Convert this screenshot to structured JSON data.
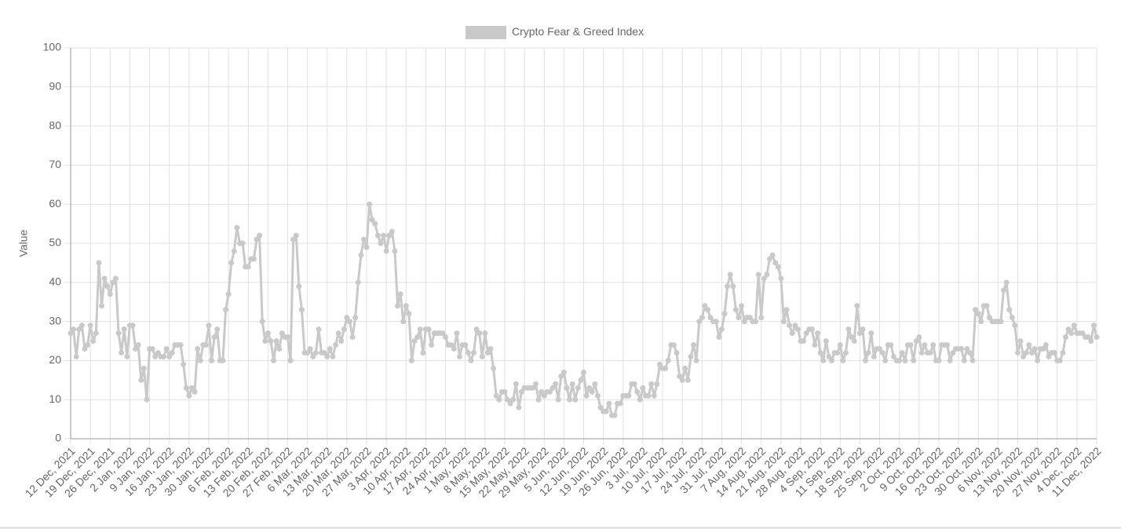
{
  "chart_data": {
    "type": "line",
    "y_label": "Value",
    "legend": "top",
    "grid": true,
    "ylim": [
      0,
      100
    ],
    "yticks": [
      0,
      10,
      20,
      30,
      40,
      50,
      60,
      70,
      80,
      90,
      100
    ],
    "categories": [
      "12 Dec, 2021",
      null,
      null,
      null,
      null,
      null,
      null,
      "19 Dec, 2021",
      null,
      null,
      null,
      null,
      null,
      null,
      "26 Dec, 2021",
      null,
      null,
      null,
      null,
      null,
      null,
      "2 Jan, 2022",
      null,
      null,
      null,
      null,
      null,
      null,
      "9 Jan, 2022",
      null,
      null,
      null,
      null,
      null,
      null,
      "16 Jan, 2022",
      null,
      null,
      null,
      null,
      null,
      null,
      "23 Jan, 2022",
      null,
      null,
      null,
      null,
      null,
      null,
      "30 Jan, 2022",
      null,
      null,
      null,
      null,
      null,
      null,
      "6 Feb, 2022",
      null,
      null,
      null,
      null,
      null,
      null,
      "13 Feb, 2022",
      null,
      null,
      null,
      null,
      null,
      null,
      "20 Feb, 2022",
      null,
      null,
      null,
      null,
      null,
      null,
      "27 Feb, 2022",
      null,
      null,
      null,
      null,
      null,
      null,
      "6 Mar, 2022",
      null,
      null,
      null,
      null,
      null,
      null,
      "13 Mar, 2022",
      null,
      null,
      null,
      null,
      null,
      null,
      "20 Mar, 2022",
      null,
      null,
      null,
      null,
      null,
      null,
      "27 Mar, 2022",
      null,
      null,
      null,
      null,
      null,
      null,
      "3 Apr, 2022",
      null,
      null,
      null,
      null,
      null,
      null,
      "10 Apr, 2022",
      null,
      null,
      null,
      null,
      null,
      null,
      "17 Apr, 2022",
      null,
      null,
      null,
      null,
      null,
      null,
      "24 Apr, 2022",
      null,
      null,
      null,
      null,
      null,
      null,
      "1 May, 2022",
      null,
      null,
      null,
      null,
      null,
      null,
      "8 May, 2022",
      null,
      null,
      null,
      null,
      null,
      null,
      "15 May, 2022",
      null,
      null,
      null,
      null,
      null,
      null,
      "22 May, 2022",
      null,
      null,
      null,
      null,
      null,
      null,
      "29 May, 2022",
      null,
      null,
      null,
      null,
      null,
      null,
      "5 Jun, 2022",
      null,
      null,
      null,
      null,
      null,
      null,
      "12 Jun, 2022",
      null,
      null,
      null,
      null,
      null,
      null,
      "19 Jun, 2022",
      null,
      null,
      null,
      null,
      null,
      null,
      "26 Jun, 2022",
      null,
      null,
      null,
      null,
      null,
      null,
      "3 Jul, 2022",
      null,
      null,
      null,
      null,
      null,
      null,
      "10 Jul, 2022",
      null,
      null,
      null,
      null,
      null,
      null,
      "17 Jul, 2022",
      null,
      null,
      null,
      null,
      null,
      null,
      "24 Jul, 2022",
      null,
      null,
      null,
      null,
      null,
      null,
      "31 Jul, 2022",
      null,
      null,
      null,
      null,
      null,
      null,
      "7 Aug, 2022",
      null,
      null,
      null,
      null,
      null,
      null,
      "14 Aug, 2022",
      null,
      null,
      null,
      null,
      null,
      null,
      "21 Aug, 2022",
      null,
      null,
      null,
      null,
      null,
      null,
      "28 Aug, 2022",
      null,
      null,
      null,
      null,
      null,
      null,
      "4 Sep, 2022",
      null,
      null,
      null,
      null,
      null,
      null,
      "11 Sep, 2022",
      null,
      null,
      null,
      null,
      null,
      null,
      "18 Sep, 2022",
      null,
      null,
      null,
      null,
      null,
      null,
      "25 Sep, 2022",
      null,
      null,
      null,
      null,
      null,
      null,
      "2 Oct, 2022",
      null,
      null,
      null,
      null,
      null,
      null,
      "9 Oct, 2022",
      null,
      null,
      null,
      null,
      null,
      null,
      "16 Oct, 2022",
      null,
      null,
      null,
      null,
      null,
      null,
      "23 Oct, 2022",
      null,
      null,
      null,
      null,
      null,
      null,
      "30 Oct, 2022",
      null,
      null,
      null,
      null,
      null,
      null,
      "6 Nov, 2022",
      null,
      null,
      null,
      null,
      null,
      null,
      "13 Nov, 2022",
      null,
      null,
      null,
      null,
      null,
      null,
      "20 Nov, 2022",
      null,
      null,
      null,
      null,
      null,
      null,
      "27 Nov, 2022",
      null,
      null,
      null,
      null,
      null,
      null,
      "4 Dec, 2022",
      null,
      null,
      null,
      null,
      null,
      null,
      "11 Dec, 2022"
    ],
    "series": [
      {
        "name": "Crypto Fear & Greed Index",
        "color": "#c9c9c9",
        "values": [
          27,
          28,
          21,
          28,
          29,
          23,
          24,
          29,
          25,
          27,
          45,
          34,
          41,
          39,
          37,
          40,
          41,
          27,
          22,
          28,
          21,
          29,
          29,
          23,
          24,
          15,
          18,
          10,
          23,
          23,
          21,
          22,
          21,
          21,
          23,
          21,
          22,
          24,
          24,
          24,
          19,
          13,
          11,
          13,
          12,
          23,
          20,
          24,
          24,
          29,
          20,
          26,
          28,
          20,
          20,
          33,
          37,
          45,
          48,
          54,
          50,
          50,
          44,
          44,
          46,
          46,
          51,
          52,
          30,
          25,
          27,
          25,
          20,
          25,
          23,
          27,
          26,
          26,
          20,
          51,
          52,
          39,
          33,
          22,
          22,
          23,
          21,
          22,
          28,
          22,
          22,
          21,
          23,
          21,
          24,
          27,
          25,
          28,
          31,
          30,
          26,
          31,
          40,
          47,
          51,
          49,
          60,
          56,
          55,
          52,
          50,
          52,
          48,
          52,
          53,
          48,
          34,
          37,
          30,
          34,
          32,
          20,
          25,
          26,
          28,
          22,
          28,
          28,
          24,
          27,
          27,
          27,
          27,
          26,
          24,
          24,
          23,
          27,
          21,
          24,
          24,
          22,
          20,
          22,
          28,
          27,
          21,
          27,
          22,
          23,
          18,
          11,
          10,
          12,
          12,
          10,
          9,
          10,
          14,
          8,
          12,
          13,
          13,
          13,
          13,
          14,
          10,
          12,
          11,
          12,
          12,
          13,
          14,
          10,
          16,
          17,
          13,
          10,
          14,
          10,
          13,
          15,
          17,
          11,
          13,
          12,
          14,
          11,
          8,
          7,
          7,
          9,
          6,
          6,
          9,
          9,
          11,
          11,
          11,
          14,
          14,
          12,
          10,
          13,
          11,
          11,
          14,
          11,
          14,
          19,
          18,
          18,
          20,
          24,
          24,
          22,
          16,
          15,
          18,
          15,
          21,
          24,
          20,
          30,
          31,
          34,
          33,
          31,
          30,
          30,
          26,
          28,
          32,
          39,
          42,
          39,
          33,
          31,
          34,
          30,
          31,
          31,
          30,
          30,
          42,
          31,
          41,
          42,
          46,
          47,
          45,
          44,
          41,
          30,
          33,
          29,
          27,
          29,
          28,
          25,
          25,
          27,
          28,
          28,
          24,
          27,
          22,
          20,
          25,
          21,
          20,
          22,
          22,
          24,
          20,
          22,
          28,
          26,
          25,
          34,
          27,
          28,
          20,
          22,
          27,
          21,
          23,
          23,
          22,
          20,
          24,
          24,
          21,
          20,
          20,
          22,
          20,
          24,
          24,
          20,
          25,
          26,
          22,
          24,
          22,
          22,
          24,
          20,
          20,
          24,
          24,
          24,
          20,
          22,
          23,
          23,
          23,
          20,
          23,
          22,
          20,
          33,
          32,
          30,
          34,
          34,
          31,
          30,
          30,
          30,
          30,
          38,
          40,
          33,
          31,
          29,
          22,
          25,
          21,
          22,
          24,
          22,
          23,
          20,
          23,
          23,
          24,
          21,
          22,
          22,
          20,
          20,
          22,
          26,
          28,
          27,
          29,
          27,
          27,
          27,
          26,
          26,
          25,
          29,
          26
        ]
      }
    ]
  }
}
